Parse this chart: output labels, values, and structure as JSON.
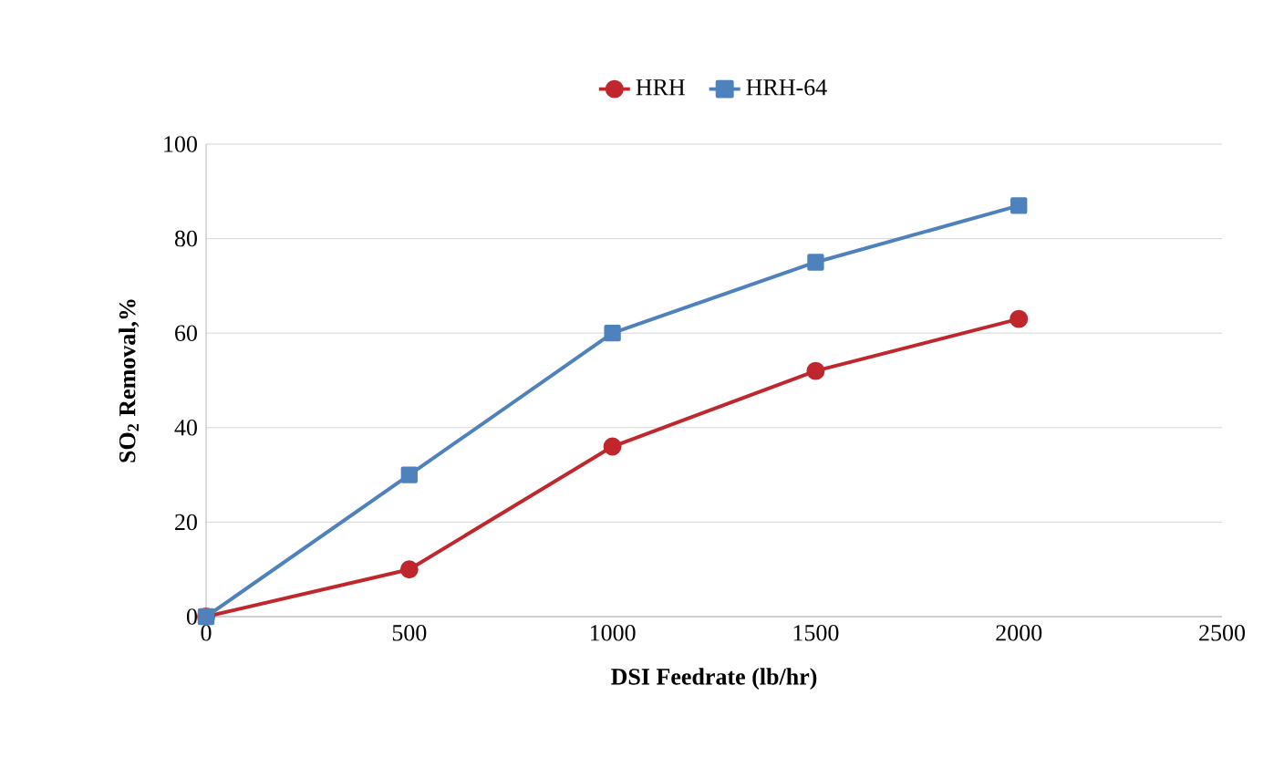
{
  "chart_data": {
    "type": "line",
    "xlabel": "DSI Feedrate (lb/hr)",
    "ylabel": "SO$_{2}$ Removal,%",
    "x": [
      0,
      500,
      1000,
      1500,
      2000
    ],
    "series": [
      {
        "name": "HRH",
        "color": "#c0272d",
        "marker": "circle",
        "values": [
          0,
          10,
          36,
          52,
          63
        ]
      },
      {
        "name": "HRH-64",
        "color": "#4f81bd",
        "marker": "square",
        "values": [
          0,
          30,
          60,
          75,
          87
        ]
      }
    ],
    "xlim": [
      0,
      2500
    ],
    "xticks": [
      0,
      500,
      1000,
      1500,
      2000,
      2500
    ],
    "ylim": [
      0,
      100
    ],
    "yticks": [
      0,
      20,
      40,
      60,
      80,
      100
    ],
    "grid": "y",
    "legend": "top"
  }
}
